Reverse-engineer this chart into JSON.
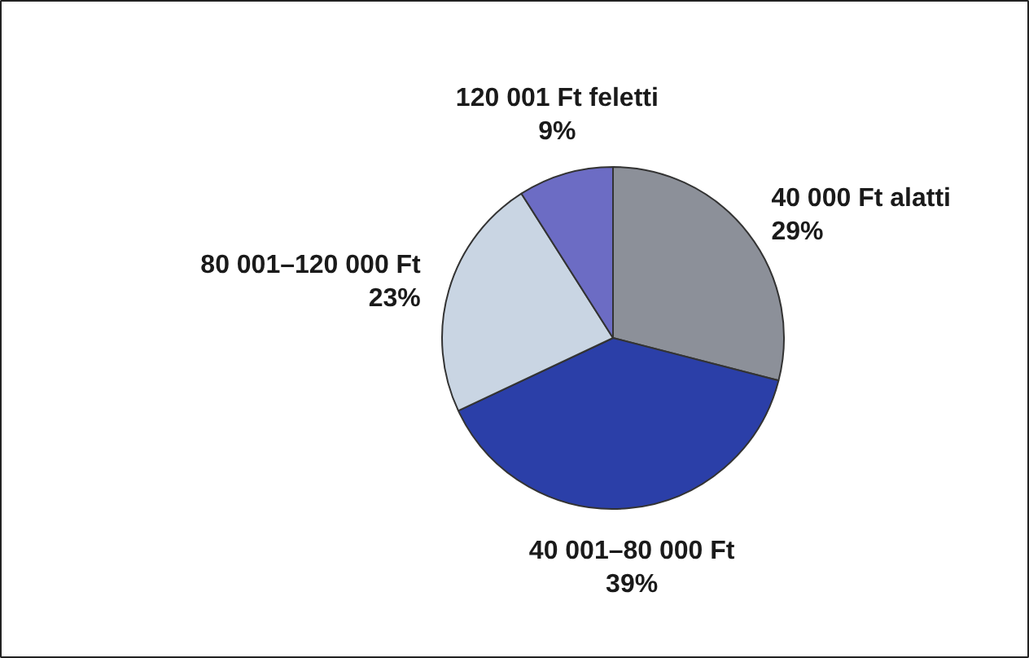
{
  "chart_data": {
    "type": "pie",
    "categories": [
      "40 000 Ft alatti",
      "40 001–80 000 Ft",
      "80 001–120 000 Ft",
      "120 001 Ft feletti"
    ],
    "values": [
      29,
      39,
      23,
      9
    ],
    "colors": [
      "#8c9099",
      "#2b3fa8",
      "#c9d5e3",
      "#6c6cc4"
    ],
    "value_labels": [
      "29%",
      "39%",
      "23%",
      "9%"
    ],
    "legend": false
  }
}
